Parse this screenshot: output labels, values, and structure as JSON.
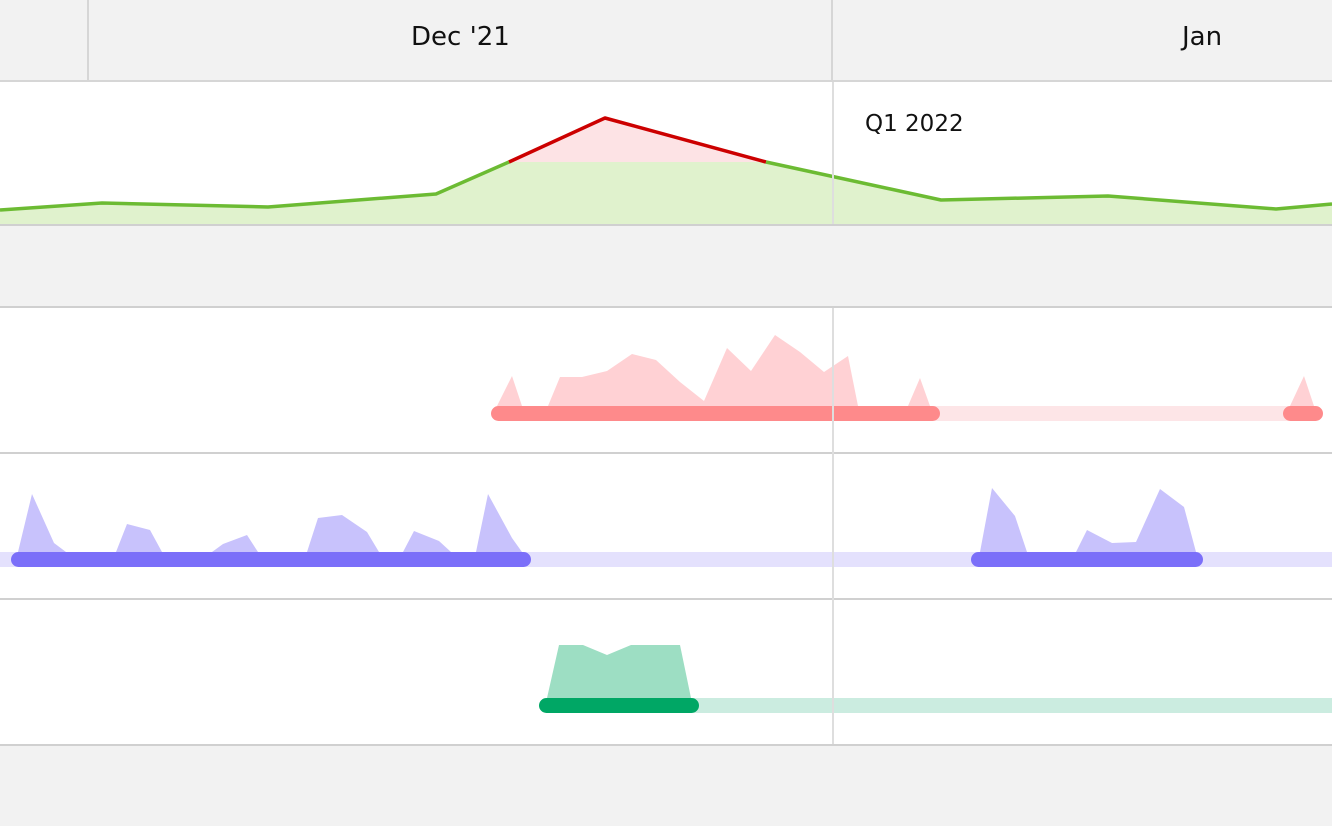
{
  "header": {
    "month_labels": [
      "Dec '21",
      "Jan"
    ]
  },
  "workload_panel": {
    "quarter_label": "Q1 2022",
    "colors": {
      "ok_line": "#6cbb33",
      "ok_fill": "#e0f2cd",
      "over_line": "#cc0000",
      "over_fill": "#fde3e5"
    }
  },
  "assignee_rows": [
    {
      "color_bar": "#fe8a8b",
      "color_fill": "#ffd1d4",
      "color_track": "#fde5e7"
    },
    {
      "color_bar": "#7b6ff9",
      "color_fill": "#c8c2fc",
      "color_track": "#e4e1fd"
    },
    {
      "color_bar": "#00a765",
      "color_fill": "#9ddec3",
      "color_track": "#cbece0"
    }
  ]
}
